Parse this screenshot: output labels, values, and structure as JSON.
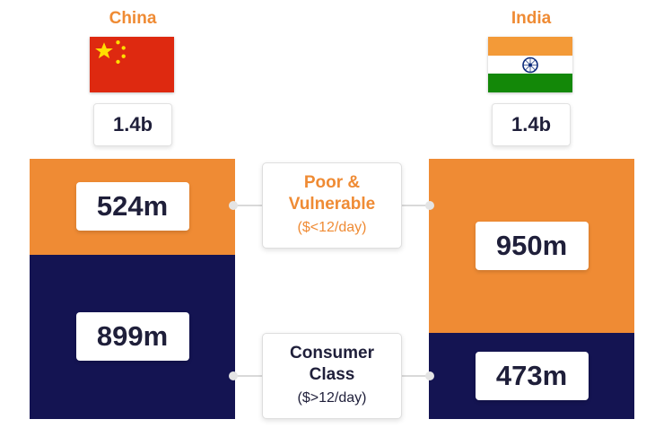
{
  "colors": {
    "poor": "#ef8b34",
    "consumer": "#141452",
    "text_dark": "#1f1f3a",
    "legend_consumer_text": "#1f1f3a"
  },
  "legend": {
    "poor": {
      "title_line1": "Poor &",
      "title_line2": "Vulnerable",
      "sub": "($<12/day)"
    },
    "consumer": {
      "title_line1": "Consumer",
      "title_line2": "Class",
      "sub": "($>12/day)"
    }
  },
  "icons": {
    "china_flag": "china-flag-icon",
    "india_flag": "india-flag-icon"
  },
  "chart_data": {
    "type": "bar",
    "stacked": true,
    "categories": [
      "China",
      "India"
    ],
    "totals": [
      "1.4b",
      "1.4b"
    ],
    "series": [
      {
        "name": "Poor & Vulnerable ($<12/day)",
        "values": [
          524,
          950
        ],
        "labels": [
          "524m",
          "950m"
        ]
      },
      {
        "name": "Consumer Class ($>12/day)",
        "values": [
          899,
          473
        ],
        "labels": [
          "899m",
          "473m"
        ]
      }
    ],
    "unit": "m"
  }
}
